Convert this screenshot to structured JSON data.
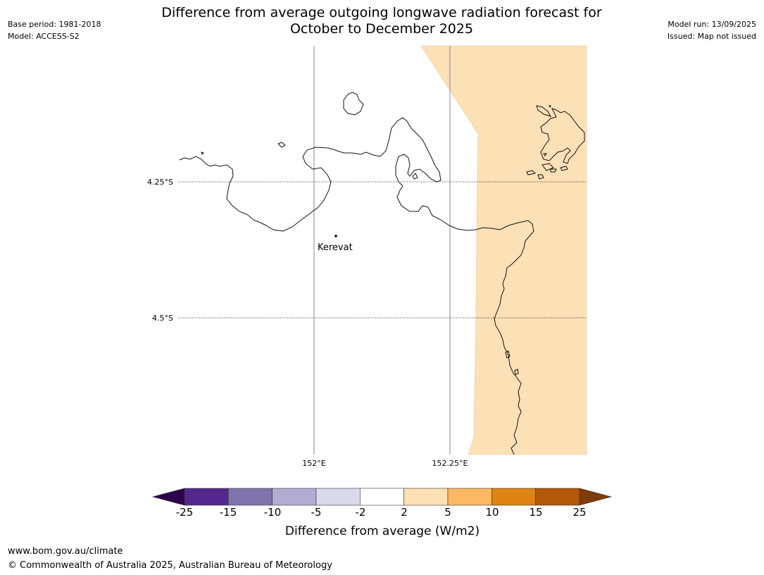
{
  "title_line1": "Difference from average outgoing longwave radiation forecast for",
  "title_line2": "October to December 2025",
  "meta_left": [
    "Base period: 1981-2018",
    "Model: ACCESS-S2"
  ],
  "meta_right": [
    "Model run: 13/09/2025",
    "Issued: Map not issued"
  ],
  "map": {
    "lat_labels": [
      "4.25°S",
      "4.5°S"
    ],
    "lon_labels": [
      "152°E",
      "152.25°E"
    ],
    "place": "Kerevat",
    "positive_anomaly_color": "#fce0b6"
  },
  "colorbar": {
    "ticks": [
      "-25",
      "-15",
      "-10",
      "-5",
      "-2",
      "2",
      "5",
      "10",
      "15",
      "25"
    ],
    "colors": [
      "#54278f",
      "#8073ac",
      "#b2abd2",
      "#d8daeb",
      "#ffffff",
      "#fee0b6",
      "#fdb863",
      "#e08214",
      "#b35806"
    ],
    "under_color": "#2d004b",
    "over_color": "#7f3b08",
    "label": "Difference from average (W/m2)"
  },
  "footer": [
    "www.bom.gov.au/climate",
    "© Commonwealth of Australia 2025, Australian Bureau of Meteorology"
  ]
}
